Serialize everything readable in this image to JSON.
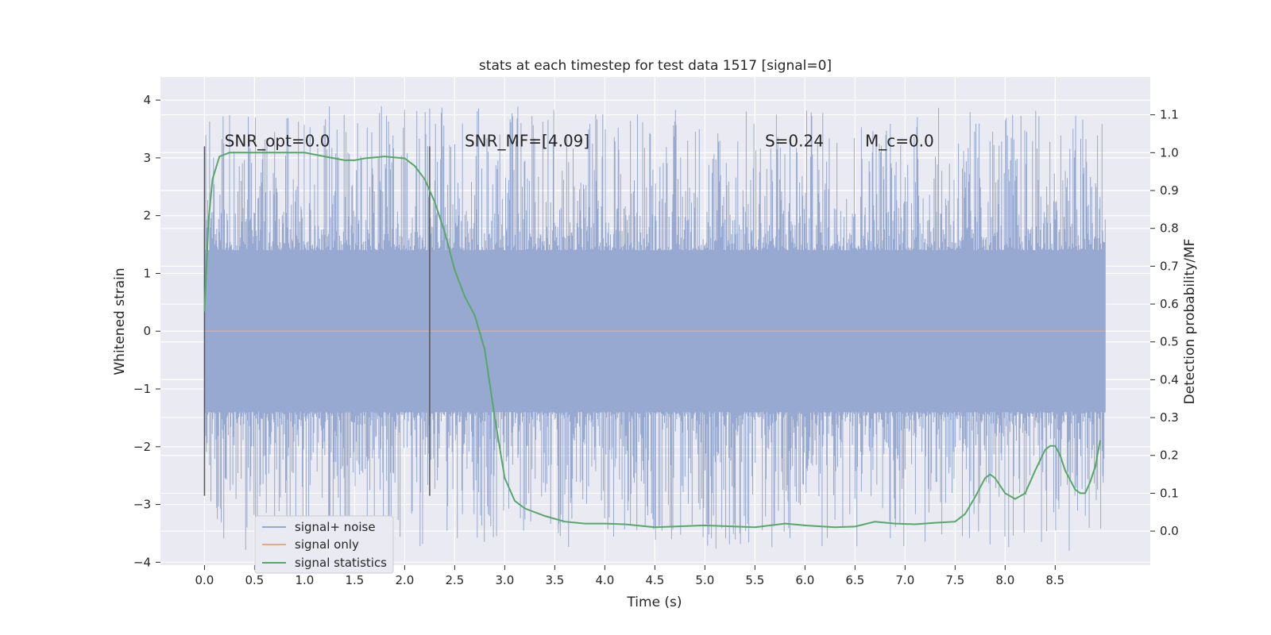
{
  "chart_data": {
    "type": "line",
    "title": "stats at each timestep for test data 1517 [signal=0]",
    "xlabel": "Time (s)",
    "ylabel": "Whitened strain",
    "y2label": "Detection probability/MF",
    "xlim": [
      -0.44,
      9.45
    ],
    "ylim": [
      -4.05,
      4.4
    ],
    "y2lim": [
      -0.09,
      1.2
    ],
    "x_ticks": [
      "0.0",
      "0.5",
      "1.0",
      "1.5",
      "2.0",
      "2.5",
      "3.0",
      "3.5",
      "4.0",
      "4.5",
      "5.0",
      "5.5",
      "6.0",
      "6.5",
      "7.0",
      "7.5",
      "8.0",
      "8.5"
    ],
    "y_ticks": [
      "−4",
      "−3",
      "−2",
      "−1",
      "0",
      "1",
      "2",
      "3",
      "4"
    ],
    "y2_ticks": [
      "0.0",
      "0.1",
      "0.2",
      "0.3",
      "0.4",
      "0.5",
      "0.6",
      "0.7",
      "0.8",
      "0.9",
      "1.0",
      "1.1"
    ],
    "grid": true,
    "legend_position": "lower-left",
    "annotations": [
      {
        "text": "SNR_opt=0.0",
        "x": 0.2,
        "y": 3.2
      },
      {
        "text": "SNR_MF=[4.09]",
        "x": 2.6,
        "y": 3.2
      },
      {
        "text": "S=0.24",
        "x": 5.6,
        "y": 3.2
      },
      {
        "text": "M_c=0.0",
        "x": 6.6,
        "y": 3.2
      }
    ],
    "vertical_markers": [
      {
        "x": 0.0,
        "y_range": [
          -2.85,
          3.2
        ]
      },
      {
        "x": 2.25,
        "y_range": [
          -2.85,
          3.2
        ]
      }
    ],
    "series": [
      {
        "name": "signal+ noise",
        "color": "#97a9d0",
        "axis": "left",
        "x_range": [
          0.0,
          9.0
        ],
        "band": [
          -1.4,
          1.4
        ],
        "description_values": "dense noise, roughly within ±1.4 with spikes up to about ±3.9"
      },
      {
        "name": "signal only",
        "color": "#e8a888",
        "axis": "left",
        "x": [
          0.0,
          9.0
        ],
        "y": [
          0.0,
          0.0
        ]
      },
      {
        "name": "signal statistics",
        "color": "#55a868",
        "axis": "right",
        "x": [
          0.0,
          0.04,
          0.08,
          0.15,
          0.25,
          0.5,
          0.75,
          1.0,
          1.2,
          1.4,
          1.5,
          1.6,
          1.8,
          2.0,
          2.1,
          2.2,
          2.3,
          2.4,
          2.5,
          2.6,
          2.7,
          2.8,
          2.9,
          3.0,
          3.1,
          3.2,
          3.4,
          3.6,
          3.8,
          4.0,
          4.2,
          4.5,
          5.0,
          5.5,
          5.8,
          6.0,
          6.3,
          6.5,
          6.7,
          6.9,
          7.1,
          7.3,
          7.5,
          7.6,
          7.7,
          7.8,
          7.85,
          7.9,
          8.0,
          8.1,
          8.2,
          8.3,
          8.4,
          8.45,
          8.5,
          8.55,
          8.6,
          8.7,
          8.75,
          8.8,
          8.85,
          8.9,
          8.95
        ],
        "y": [
          0.58,
          0.82,
          0.93,
          0.99,
          1.0,
          1.0,
          1.0,
          1.0,
          0.99,
          0.98,
          0.98,
          0.985,
          0.99,
          0.985,
          0.965,
          0.93,
          0.87,
          0.79,
          0.69,
          0.62,
          0.57,
          0.48,
          0.3,
          0.14,
          0.08,
          0.06,
          0.04,
          0.025,
          0.02,
          0.02,
          0.018,
          0.01,
          0.015,
          0.01,
          0.02,
          0.015,
          0.01,
          0.012,
          0.025,
          0.02,
          0.018,
          0.022,
          0.025,
          0.045,
          0.09,
          0.14,
          0.15,
          0.14,
          0.1,
          0.085,
          0.1,
          0.16,
          0.215,
          0.225,
          0.225,
          0.2,
          0.16,
          0.11,
          0.1,
          0.1,
          0.13,
          0.17,
          0.24
        ]
      }
    ]
  }
}
